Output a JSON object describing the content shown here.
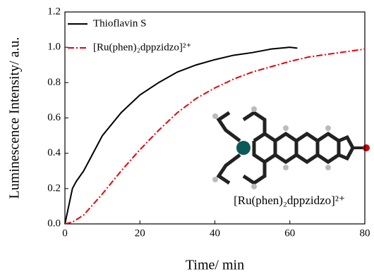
{
  "chart_data": {
    "type": "line",
    "x_label": "Time/ min",
    "y_label": "Luminescence Intensity/ a.u.",
    "xlim": [
      0,
      80
    ],
    "xticks": [
      0,
      20,
      40,
      60,
      80
    ],
    "ylim": [
      0,
      1.2
    ],
    "yticks": [
      {
        "value": 0,
        "label": "0.0"
      },
      {
        "value": 0.2,
        "label": "0.2"
      },
      {
        "value": 0.4,
        "label": "0.4"
      },
      {
        "value": 0.6,
        "label": "0.6"
      },
      {
        "value": 0.8,
        "label": "0.8"
      },
      {
        "value": 1.0,
        "label": "1.0"
      },
      {
        "value": 1.2,
        "label": "1.2"
      }
    ],
    "legend": "upper-left",
    "series": [
      {
        "name": "Thioflavin S",
        "color": "#000000",
        "style": "solid",
        "x": [
          0,
          1,
          2,
          3,
          5,
          8,
          10,
          15,
          20,
          25,
          30,
          35,
          40,
          45,
          50,
          55,
          60,
          62
        ],
        "values": [
          0,
          0.1,
          0.2,
          0.24,
          0.3,
          0.42,
          0.5,
          0.63,
          0.73,
          0.8,
          0.86,
          0.9,
          0.93,
          0.955,
          0.97,
          0.99,
          1.0,
          0.995
        ]
      },
      {
        "name": "[Ru(phen)₂dppzidzo]²⁺",
        "color": "#e8000b",
        "style": "dashdot",
        "x": [
          0,
          2,
          5,
          10,
          15,
          20,
          25,
          30,
          35,
          40,
          45,
          50,
          55,
          60,
          65,
          70,
          75,
          80
        ],
        "values": [
          0,
          0.01,
          0.05,
          0.17,
          0.3,
          0.42,
          0.53,
          0.63,
          0.71,
          0.77,
          0.82,
          0.86,
          0.89,
          0.92,
          0.945,
          0.96,
          0.975,
          0.99
        ]
      }
    ],
    "annotation": "[Ru(phen)₂dppzidzo]²⁺"
  }
}
